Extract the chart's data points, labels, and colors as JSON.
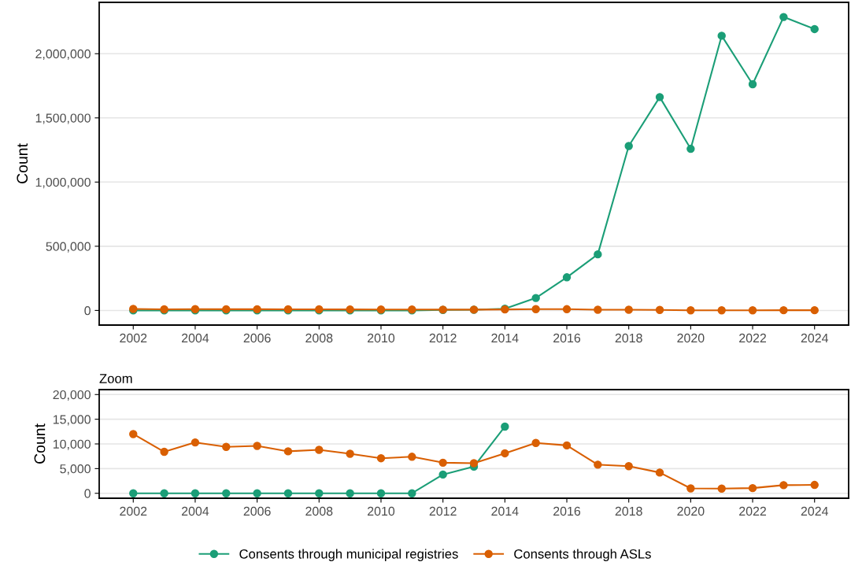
{
  "chart_data": [
    {
      "type": "line",
      "ylabel": "Count",
      "x": [
        2002,
        2003,
        2004,
        2005,
        2006,
        2007,
        2008,
        2009,
        2010,
        2011,
        2012,
        2013,
        2014,
        2015,
        2016,
        2017,
        2018,
        2019,
        2020,
        2021,
        2022,
        2023,
        2024
      ],
      "series": [
        {
          "color": "#1b9e77",
          "values": [
            0,
            0,
            0,
            0,
            0,
            0,
            0,
            0,
            0,
            0,
            3800,
            5400,
            13500,
            97000,
            258000,
            437000,
            1281000,
            1662000,
            1259000,
            2140000,
            1762000,
            2286000,
            2192000
          ]
        },
        {
          "color": "#d95f02",
          "values": [
            12000,
            8400,
            10300,
            9400,
            9600,
            8500,
            8800,
            8000,
            7100,
            7400,
            6200,
            6100,
            8100,
            10200,
            9700,
            5800,
            5500,
            4200,
            1000,
            950,
            1050,
            1650,
            1700
          ]
        }
      ],
      "xlim": [
        2000.9,
        2025.1
      ],
      "xticks": [
        2002,
        2004,
        2006,
        2008,
        2010,
        2012,
        2014,
        2016,
        2018,
        2020,
        2022,
        2024
      ],
      "ylim": [
        -114000,
        2400000
      ],
      "yticks": [
        {
          "value": 0,
          "label": "0"
        },
        {
          "value": 500000,
          "label": "500,000"
        },
        {
          "value": 1000000,
          "label": "1,000,000"
        },
        {
          "value": 1500000,
          "label": "1,500,000"
        },
        {
          "value": 2000000,
          "label": "2,000,000"
        }
      ],
      "grid": "y",
      "marker": "circle",
      "legend": false
    },
    {
      "type": "line",
      "title": "Zoom",
      "ylabel": "Count",
      "x": [
        2002,
        2003,
        2004,
        2005,
        2006,
        2007,
        2008,
        2009,
        2010,
        2011,
        2012,
        2013,
        2014,
        2015,
        2016,
        2017,
        2018,
        2019,
        2020,
        2021,
        2022,
        2023,
        2024
      ],
      "series": [
        {
          "name": "Consents through municipal registries",
          "color": "#1b9e77",
          "values": [
            0,
            0,
            0,
            0,
            0,
            0,
            0,
            0,
            0,
            0,
            3800,
            5400,
            13500,
            null,
            null,
            null,
            null,
            null,
            null,
            null,
            null,
            null,
            null
          ]
        },
        {
          "name": "Consents through ASLs",
          "color": "#d95f02",
          "values": [
            12000,
            8400,
            10300,
            9400,
            9600,
            8500,
            8800,
            8000,
            7100,
            7400,
            6200,
            6100,
            8100,
            10200,
            9700,
            5800,
            5500,
            4200,
            1000,
            950,
            1050,
            1650,
            1700
          ]
        }
      ],
      "xlim": [
        2000.9,
        2025.1
      ],
      "xticks": [
        2002,
        2004,
        2006,
        2008,
        2010,
        2012,
        2014,
        2016,
        2018,
        2020,
        2022,
        2024
      ],
      "ylim": [
        -1000,
        21000
      ],
      "yticks": [
        {
          "value": 0,
          "label": "0"
        },
        {
          "value": 5000,
          "label": "5,000"
        },
        {
          "value": 10000,
          "label": "10,000"
        },
        {
          "value": 15000,
          "label": "15,000"
        },
        {
          "value": 20000,
          "label": "20,000"
        }
      ],
      "grid": "y",
      "marker": "circle",
      "legend": "bottom"
    }
  ]
}
